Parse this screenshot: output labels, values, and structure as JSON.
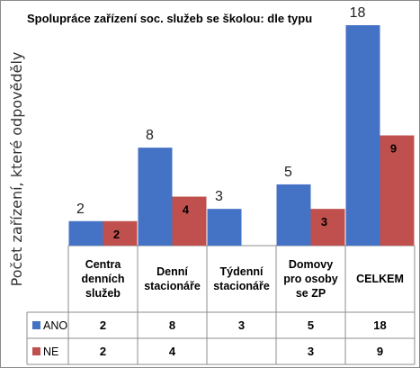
{
  "chart_data": {
    "type": "bar",
    "title": "Spolupráce zařízení soc. služeb  se školou: dle typu",
    "ylabel": "Počet zařízení, které odpověděly",
    "xlabel": "",
    "categories": [
      [
        "Centra",
        "denních",
        "služeb"
      ],
      [
        "Denní",
        "stacionáře"
      ],
      [
        "Týdenní",
        "stacionáře"
      ],
      [
        "Domovy",
        "pro osoby",
        "se ZP"
      ],
      [
        "CELKEM"
      ]
    ],
    "series": [
      {
        "name": "ANO",
        "color": "#4472C4",
        "values": [
          2,
          8,
          3,
          5,
          18
        ]
      },
      {
        "name": "NE",
        "color": "#C0504D",
        "values": [
          2,
          4,
          null,
          3,
          9
        ]
      }
    ],
    "ylim": [
      0,
      18
    ],
    "grid": false,
    "legend": "data-table"
  }
}
